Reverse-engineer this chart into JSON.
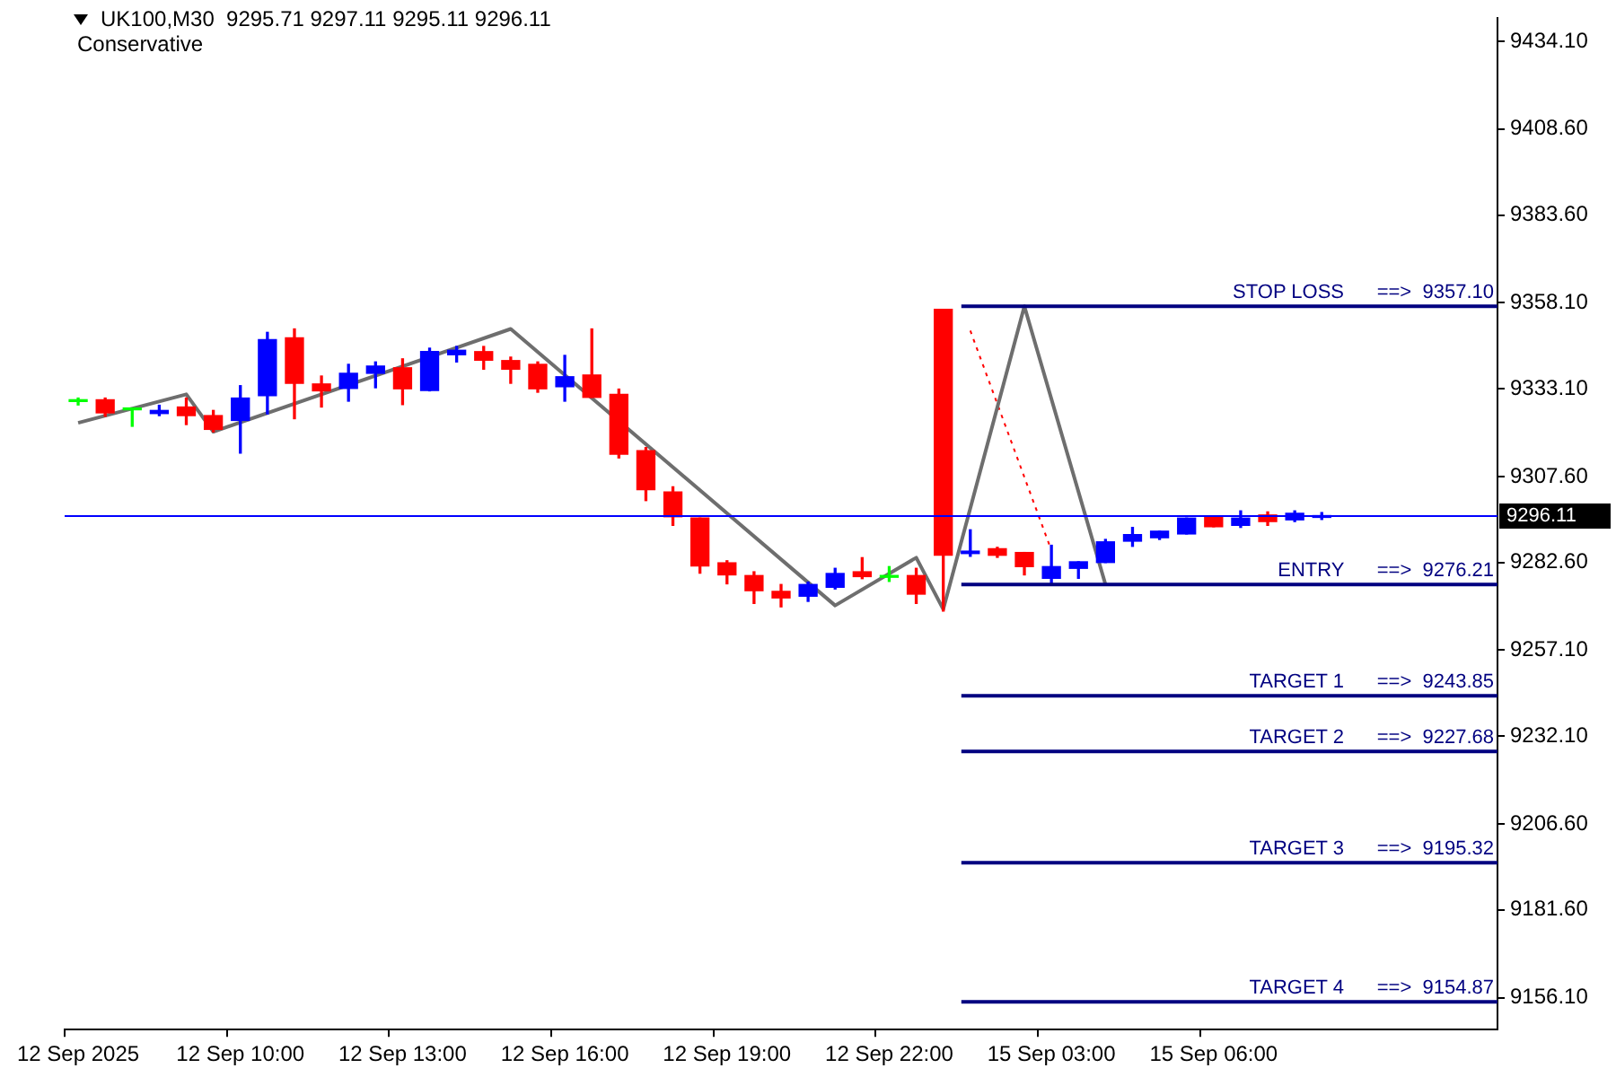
{
  "chart_data": {
    "type": "candlestick",
    "title": "UK100,M30  9295.71 9297.11 9295.11 9296.11",
    "subtitle": "Conservative",
    "categories": [
      "12 Sep 2025",
      null,
      null,
      null,
      null,
      null,
      "12 Sep 10:00",
      null,
      null,
      null,
      null,
      null,
      "12 Sep 13:00",
      null,
      null,
      null,
      null,
      null,
      "12 Sep 16:00",
      null,
      null,
      null,
      null,
      null,
      "12 Sep 19:00",
      null,
      null,
      null,
      null,
      null,
      "12 Sep 22:00",
      null,
      null,
      null,
      null,
      null,
      "15 Sep 03:00",
      null,
      null,
      null,
      null,
      null,
      "15 Sep 06:00",
      null,
      null,
      null,
      null,
      null,
      null,
      null,
      null,
      null,
      null
    ],
    "ohlc": [
      [
        9329.4,
        9330.4,
        9328.4,
        9329.4
      ],
      [
        9329.9,
        9330.4,
        9325.1,
        9326.1
      ],
      [
        9327.0,
        9327.3,
        9322.2,
        9327.0
      ],
      [
        9325.9,
        9328.3,
        9325.3,
        9326.8
      ],
      [
        9327.8,
        9330.4,
        9322.7,
        9325.3
      ],
      [
        9325.3,
        9326.8,
        9320.6,
        9321.3
      ],
      [
        9323.9,
        9334.0,
        9314.4,
        9330.4
      ],
      [
        9331.1,
        9349.5,
        9325.8,
        9347.4
      ],
      [
        9347.9,
        9350.5,
        9324.4,
        9334.7
      ],
      [
        9334.5,
        9336.8,
        9327.8,
        9332.5
      ],
      [
        9333.2,
        9340.2,
        9329.5,
        9337.6
      ],
      [
        9337.6,
        9340.9,
        9333.4,
        9339.7
      ],
      [
        9339.2,
        9341.8,
        9328.5,
        9333.1
      ],
      [
        9332.6,
        9344.9,
        9332.5,
        9343.9
      ],
      [
        9343.0,
        9345.4,
        9340.9,
        9344.3
      ],
      [
        9343.9,
        9345.4,
        9338.8,
        9341.4
      ],
      [
        9341.3,
        9342.3,
        9334.7,
        9338.8
      ],
      [
        9340.2,
        9340.9,
        9332.1,
        9333.1
      ],
      [
        9333.7,
        9342.8,
        9329.5,
        9336.6
      ],
      [
        9337.1,
        9350.5,
        9330.6,
        9330.6
      ],
      [
        9331.5,
        9333.0,
        9313.0,
        9314.1
      ],
      [
        9315.1,
        9316.0,
        9300.6,
        9303.8
      ],
      [
        9303.1,
        9304.6,
        9293.4,
        9295.9
      ],
      [
        9295.5,
        9295.5,
        9279.5,
        9281.6
      ],
      [
        9282.5,
        9283.1,
        9276.4,
        9279.0
      ],
      [
        9278.8,
        9279.9,
        9270.7,
        9274.4
      ],
      [
        9274.2,
        9276.2,
        9269.7,
        9272.3
      ],
      [
        9272.8,
        9276.9,
        9271.3,
        9276.2
      ],
      [
        9275.4,
        9280.9,
        9274.9,
        9279.4
      ],
      [
        9279.9,
        9284.0,
        9277.9,
        9278.5
      ],
      [
        9278.3,
        9281.4,
        9277.1,
        9278.3
      ],
      [
        9278.8,
        9280.9,
        9270.7,
        9273.4
      ],
      [
        9356.2,
        9356.2,
        9268.5,
        9284.7
      ],
      [
        9285.2,
        9292.1,
        9284.4,
        9285.9
      ],
      [
        9286.6,
        9287.0,
        9284.1,
        9284.7
      ],
      [
        9285.5,
        9285.5,
        9279.0,
        9281.4
      ],
      [
        9278.0,
        9287.6,
        9276.6,
        9281.4
      ],
      [
        9280.9,
        9282.8,
        9278.0,
        9282.8
      ],
      [
        9282.6,
        9289.3,
        9282.6,
        9288.6
      ],
      [
        9288.8,
        9292.8,
        9287.3,
        9290.7
      ],
      [
        9289.8,
        9291.7,
        9289.3,
        9291.7
      ],
      [
        9290.9,
        9295.5,
        9290.9,
        9295.5
      ],
      [
        9295.9,
        9295.9,
        9293.0,
        9293.0
      ],
      [
        9293.4,
        9297.6,
        9292.8,
        9295.5
      ],
      [
        9296.4,
        9297.3,
        9293.4,
        9294.5
      ],
      [
        9295.0,
        9297.6,
        9294.5,
        9296.9
      ],
      [
        9295.71,
        9297.11,
        9295.11,
        9296.11
      ],
      null,
      null,
      null,
      null,
      null,
      null
    ],
    "colors": [
      "#00ff00",
      "#ff0000",
      "#00ff00",
      "#0000ff",
      "#ff0000",
      "#ff0000",
      "#0000ff",
      "#0000ff",
      "#ff0000",
      "#ff0000",
      "#0000ff",
      "#0000ff",
      "#ff0000",
      "#0000ff",
      "#0000ff",
      "#ff0000",
      "#ff0000",
      "#ff0000",
      "#0000ff",
      "#ff0000",
      "#ff0000",
      "#ff0000",
      "#ff0000",
      "#ff0000",
      "#ff0000",
      "#ff0000",
      "#ff0000",
      "#0000ff",
      "#0000ff",
      "#ff0000",
      "#00ff00",
      "#ff0000",
      "#ff0000",
      "#0000ff",
      "#ff0000",
      "#ff0000",
      "#0000ff",
      "#0000ff",
      "#0000ff",
      "#0000ff",
      "#0000ff",
      "#0000ff",
      "#ff0000",
      "#0000ff",
      "#ff0000",
      "#0000ff",
      "#0000ff",
      null,
      null,
      null,
      null,
      null,
      null
    ],
    "series": [
      {
        "type": "line",
        "color": "#6e6e6e",
        "line_style": "solid",
        "values": [
          9323.2,
          null,
          null,
          null,
          9331.5,
          9320.6,
          null,
          null,
          null,
          null,
          null,
          null,
          null,
          null,
          null,
          null,
          9350.5,
          null,
          null,
          null,
          null,
          null,
          null,
          null,
          null,
          null,
          null,
          null,
          9270.1,
          null,
          null,
          9284.0,
          9269.0,
          null,
          null,
          9357.1,
          null,
          null,
          9276.2,
          null,
          null,
          null,
          null,
          null,
          null,
          null,
          null,
          null,
          null,
          null,
          null,
          null,
          null
        ]
      },
      {
        "type": "line",
        "color": "#ff0000",
        "line_style": "dotted",
        "values": [
          null,
          null,
          null,
          null,
          null,
          null,
          null,
          null,
          null,
          null,
          null,
          null,
          null,
          null,
          null,
          null,
          null,
          null,
          null,
          null,
          null,
          null,
          null,
          null,
          null,
          null,
          null,
          null,
          null,
          null,
          null,
          null,
          null,
          9350.0,
          null,
          null,
          9286.1,
          null,
          null,
          null,
          null,
          null,
          null,
          null,
          null,
          null,
          null,
          null,
          null,
          null,
          null,
          null,
          null
        ]
      }
    ],
    "ylim": [
      9146.8,
      9440.8
    ],
    "yticks": [
      {
        "value": 9156.1,
        "label": "9156.10"
      },
      {
        "value": 9181.6,
        "label": "9181.60"
      },
      {
        "value": 9206.6,
        "label": "9206.60"
      },
      {
        "value": 9232.1,
        "label": "9232.10"
      },
      {
        "value": 9257.1,
        "label": "9257.10"
      },
      {
        "value": 9282.6,
        "label": "9282.60"
      },
      {
        "value": 9307.6,
        "label": "9307.60"
      },
      {
        "value": 9333.1,
        "label": "9333.10"
      },
      {
        "value": 9358.1,
        "label": "9358.10"
      },
      {
        "value": 9383.6,
        "label": "9383.60"
      },
      {
        "value": 9408.6,
        "label": "9408.60"
      },
      {
        "value": 9434.1,
        "label": "9434.10"
      }
    ],
    "ref_lines": [
      {
        "axis": "y",
        "value": 9296.11,
        "label": "9296.11",
        "color": "#0000ff"
      },
      {
        "axis": "y",
        "value": 9357.1,
        "label": "STOP LOSS      ==>  9357.10",
        "color": "#000080"
      },
      {
        "axis": "y",
        "value": 9276.21,
        "label": "ENTRY      ==>  9276.21",
        "color": "#000080"
      },
      {
        "axis": "y",
        "value": 9243.85,
        "label": "TARGET 1      ==>  9243.85",
        "color": "#000080"
      },
      {
        "axis": "y",
        "value": 9227.68,
        "label": "TARGET 2      ==>  9227.68",
        "color": "#000080"
      },
      {
        "axis": "y",
        "value": 9195.32,
        "label": "TARGET 3      ==>  9195.32",
        "color": "#000080"
      },
      {
        "axis": "y",
        "value": 9154.87,
        "label": "TARGET 4      ==>  9154.87",
        "color": "#000080"
      }
    ],
    "grid": false,
    "legend": false,
    "marker": "none"
  }
}
